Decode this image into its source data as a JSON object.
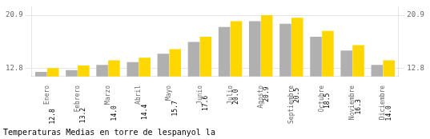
{
  "chart_data": {
    "type": "bar",
    "title": "Temperaturas Medias en torre de lespanyol la",
    "categories": [
      "Enero",
      "Febrero",
      "Marzo",
      "Abril",
      "Mayo",
      "Junio",
      "Julio",
      "Agosto",
      "Septiembre",
      "Octubre",
      "Noviembre",
      "Diciembre"
    ],
    "series": [
      {
        "color": "#B0B0B0",
        "values": [
          12.2,
          12.5,
          13.3,
          13.7,
          15.0,
          16.8,
          19.1,
          20.0,
          19.6,
          17.6,
          15.5,
          13.3
        ]
      },
      {
        "color": "#FFD700",
        "values": [
          12.8,
          13.2,
          14.0,
          14.4,
          15.7,
          17.6,
          20.0,
          20.9,
          20.5,
          18.5,
          16.3,
          14.0
        ],
        "data_labels": true,
        "value_labels": [
          "12.8",
          "13.2",
          "14.0",
          "14.4",
          "15.7",
          "17.6",
          "20.0",
          "20.9",
          "20.5",
          "18.5",
          "16.3",
          "14.0"
        ]
      }
    ],
    "ylim": [
      11.5,
      22.2
    ],
    "yticks": [
      12.8,
      20.9
    ],
    "y2lim": [
      11.5,
      22.2
    ],
    "y2ticks": [
      12.8,
      20.9
    ],
    "grid": true
  }
}
